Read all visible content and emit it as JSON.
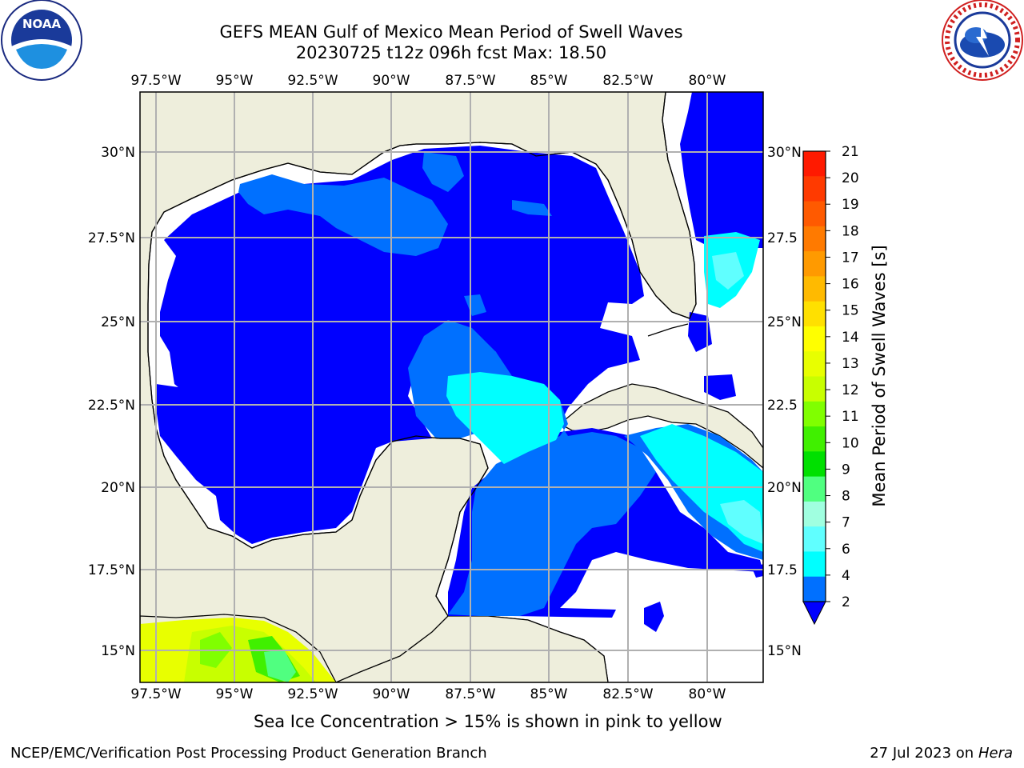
{
  "title": {
    "line1": "GEFS MEAN Gulf of Mexico Mean Period of Swell Waves",
    "line2": "20230725 t12z 096h fcst   Max: 18.50"
  },
  "logos": {
    "left": "noaa-logo",
    "right": "national-weather-service-logo"
  },
  "map": {
    "lon_ticks": [
      "97.5°W",
      "95°W",
      "92.5°W",
      "90°W",
      "87.5°W",
      "85°W",
      "82.5°W",
      "80°W"
    ],
    "lat_ticks_left": [
      "30°N",
      "27.5°N",
      "25°N",
      "22.5°N",
      "20°N",
      "17.5°N",
      "15°N"
    ],
    "lat_ticks_right": [
      "30°N",
      "27.5",
      "25°N",
      "22.5",
      "20°N",
      "17.5",
      "15°N"
    ],
    "land_color": "#eeeedc",
    "grid_color": "#b0b0b0"
  },
  "colorbar": {
    "title": "Mean Period of Swell Waves [s]",
    "ticks": [
      "21",
      "20",
      "19",
      "18",
      "17",
      "16",
      "15",
      "14",
      "13",
      "12",
      "11",
      "10",
      "9",
      "8",
      "7",
      "6",
      "4",
      "2"
    ],
    "colors": [
      "#ff1a00",
      "#ff3a00",
      "#ff5a00",
      "#ff7a00",
      "#ff9a00",
      "#ffba00",
      "#ffe000",
      "#ffff00",
      "#e8ff00",
      "#c8ff00",
      "#80ff00",
      "#40f000",
      "#00e000",
      "#50ff80",
      "#a0ffe0",
      "#60ffff",
      "#00ffff",
      "#0070ff"
    ],
    "extend_color": "#0000ff"
  },
  "note": "Sea Ice Concentration > 15% is shown in pink to yellow",
  "footer": {
    "left": "NCEP/EMC/Verification Post Processing Product Generation Branch",
    "right_date": "27 Jul 2023 on ",
    "right_host": "Hera"
  }
}
